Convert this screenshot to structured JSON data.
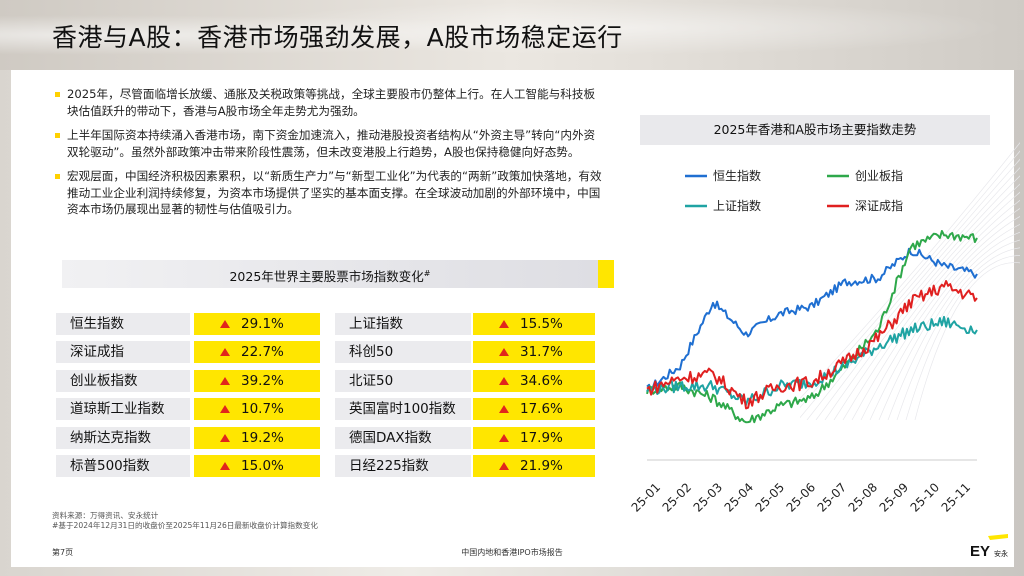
{
  "title": "香港与A股：香港市场强劲发展，A股市场稳定运行",
  "bullets": [
    "2025年，尽管面临增长放缓、通胀及关税政策等挑战，全球主要股市仍整体上行。在人工智能与科技板块估值跃升的带动下，香港与A股市场全年走势尤为强劲。",
    "上半年国际资本持续涌入香港市场，南下资金加速流入，推动港股投资者结构从“外资主导”转向“内外资双轮驱动”。虽然外部政策冲击带来阶段性震荡，但未改变港股上行趋势，A股也保持稳健向好态势。",
    "宏观层面，中国经济积极因素累积，以“新质生产力”与“新型工业化”为代表的“两新”政策加快落地，有效推动工业企业利润持续修复，为资本市场提供了坚实的基本面支撑。在全球波动加剧的外部环境中，中国资本市场仍展现出显著的韧性与估值吸引力。"
  ],
  "table_title": "2025年世界主要股票市场指数变化",
  "table_title_mark": "#",
  "index_table": [
    {
      "name": "恒生指数",
      "value": "29.1%"
    },
    {
      "name": "深证成指",
      "value": "22.7%"
    },
    {
      "name": "创业板指数",
      "value": "39.2%"
    },
    {
      "name": "道琼斯工业指数",
      "value": "10.7%"
    },
    {
      "name": "纳斯达克指数",
      "value": "19.2%"
    },
    {
      "name": "标普500指数",
      "value": "15.0%"
    },
    {
      "name": "上证指数",
      "value": "15.5%"
    },
    {
      "name": "科创50",
      "value": "31.7%"
    },
    {
      "name": "北证50",
      "value": "34.6%"
    },
    {
      "name": "英国富时100指数",
      "value": "17.6%"
    },
    {
      "name": "德国DAX指数",
      "value": "17.9%"
    },
    {
      "name": "日经225指数",
      "value": "21.9%"
    }
  ],
  "source_lines": [
    "资料来源：万得资讯、安永统计",
    "#基于2024年12月31日的收盘价至2025年11月26日最新收盘价计算指数变化"
  ],
  "page_number": "第7页",
  "footer_title": "中国内地和香港IPO市场报告",
  "logo_text": "EY",
  "logo_sub": "安永",
  "colors": {
    "yellow": "#ffe600",
    "hsi": "#1f6fd1",
    "chinext": "#2ea84a",
    "sse": "#1fa3a3",
    "szse": "#e02020",
    "up_arrow": "#e1261c"
  },
  "chart_data": {
    "type": "line",
    "title": "2025年香港和A股市场主要指数走势",
    "categories": [
      "25-01",
      "25-02",
      "25-03",
      "25-04",
      "25-05",
      "25-06",
      "25-07",
      "25-08",
      "25-09",
      "25-10",
      "25-11"
    ],
    "legend": [
      "恒生指数",
      "创业板指",
      "上证指数",
      "深证成指"
    ],
    "series": [
      {
        "name": "恒生指数",
        "color": "#1f6fd1",
        "values": [
          100,
          106,
          122,
          114,
          119,
          121,
          127,
          128,
          135,
          131,
          129
        ]
      },
      {
        "name": "创业板指",
        "color": "#2ea84a",
        "values": [
          100,
          101,
          98,
          92,
          96,
          98,
          106,
          115,
          136,
          139,
          138
        ]
      },
      {
        "name": "上证指数",
        "color": "#1fa3a3",
        "values": [
          100,
          101,
          101,
          97,
          101,
          102,
          106,
          111,
          115,
          117,
          115
        ]
      },
      {
        "name": "深证成指",
        "color": "#e02020",
        "values": [
          100,
          103,
          104,
          97,
          101,
          102,
          107,
          113,
          122,
          126,
          123
        ]
      }
    ],
    "ylim": [
      85,
      145
    ],
    "grid": false,
    "legend_position": "top"
  }
}
